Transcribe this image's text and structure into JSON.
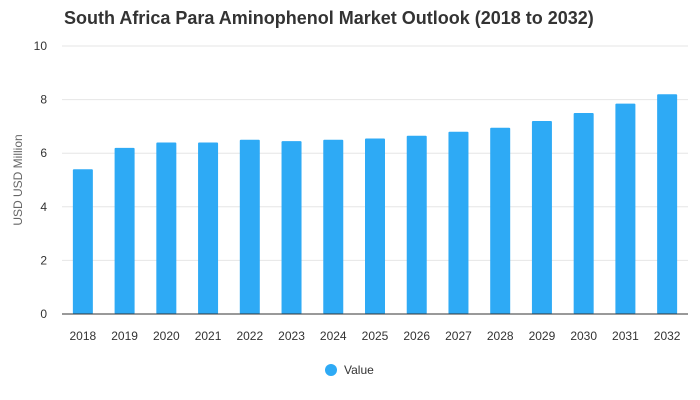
{
  "chart_data": {
    "type": "bar",
    "title": "South Africa Para Aminophenol Market Outlook (2018 to 2032)",
    "xlabel": "",
    "ylabel": "USD USD Million",
    "ylim": [
      0,
      10
    ],
    "yticks": [
      0,
      2,
      4,
      6,
      8,
      10
    ],
    "grid": true,
    "legend_position": "bottom-center",
    "categories": [
      "2018",
      "2019",
      "2020",
      "2021",
      "2022",
      "2023",
      "2024",
      "2025",
      "2026",
      "2027",
      "2028",
      "2029",
      "2030",
      "2031",
      "2032"
    ],
    "series": [
      {
        "name": "Value",
        "color": "#2eaaf5",
        "values": [
          5.4,
          6.2,
          6.4,
          6.4,
          6.5,
          6.45,
          6.5,
          6.55,
          6.65,
          6.8,
          6.95,
          7.2,
          7.5,
          7.85,
          8.2
        ]
      }
    ]
  }
}
